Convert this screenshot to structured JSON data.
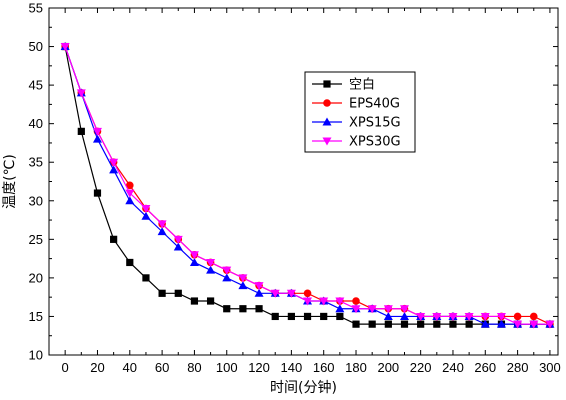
{
  "chart_data": {
    "type": "line",
    "xlabel": "时间(分钟)",
    "ylabel": "温度(℃)",
    "xlim": [
      -10,
      305
    ],
    "ylim": [
      10,
      55
    ],
    "xticks": [
      0,
      20,
      40,
      60,
      80,
      100,
      120,
      140,
      160,
      180,
      200,
      220,
      240,
      260,
      280,
      300
    ],
    "yticks": [
      10,
      15,
      20,
      25,
      30,
      35,
      40,
      45,
      50,
      55
    ],
    "legend_position": "upper-right",
    "grid": false,
    "x": [
      0,
      10,
      20,
      30,
      40,
      50,
      60,
      70,
      80,
      90,
      100,
      110,
      120,
      130,
      140,
      150,
      160,
      170,
      180,
      190,
      200,
      210,
      220,
      230,
      240,
      250,
      260,
      270,
      280,
      290,
      300
    ],
    "series": [
      {
        "name": "空白",
        "color": "#000000",
        "marker": "square",
        "values": [
          50,
          39,
          31,
          25,
          22,
          20,
          18,
          18,
          17,
          17,
          16,
          16,
          16,
          15,
          15,
          15,
          15,
          15,
          14,
          14,
          14,
          14,
          14,
          14,
          14,
          14,
          14,
          14,
          14,
          14,
          14
        ]
      },
      {
        "name": "EPS40G",
        "color": "#ff0000",
        "marker": "circle",
        "values": [
          50,
          44,
          39,
          35,
          32,
          29,
          27,
          25,
          23,
          22,
          21,
          20,
          19,
          18,
          18,
          18,
          17,
          17,
          17,
          16,
          16,
          16,
          15,
          15,
          15,
          15,
          15,
          15,
          15,
          15,
          14
        ]
      },
      {
        "name": "XPS15G",
        "color": "#0000ff",
        "marker": "triangle-up",
        "values": [
          50,
          44,
          38,
          34,
          30,
          28,
          26,
          24,
          22,
          21,
          20,
          19,
          18,
          18,
          18,
          17,
          17,
          16,
          16,
          16,
          15,
          15,
          15,
          15,
          15,
          15,
          14,
          14,
          14,
          14,
          14
        ]
      },
      {
        "name": "XPS30G",
        "color": "#ff00ff",
        "marker": "triangle-down",
        "values": [
          50,
          44,
          39,
          35,
          31,
          29,
          27,
          25,
          23,
          22,
          21,
          20,
          19,
          18,
          18,
          17,
          17,
          17,
          16,
          16,
          16,
          16,
          15,
          15,
          15,
          15,
          15,
          15,
          14,
          14,
          14
        ]
      }
    ]
  }
}
